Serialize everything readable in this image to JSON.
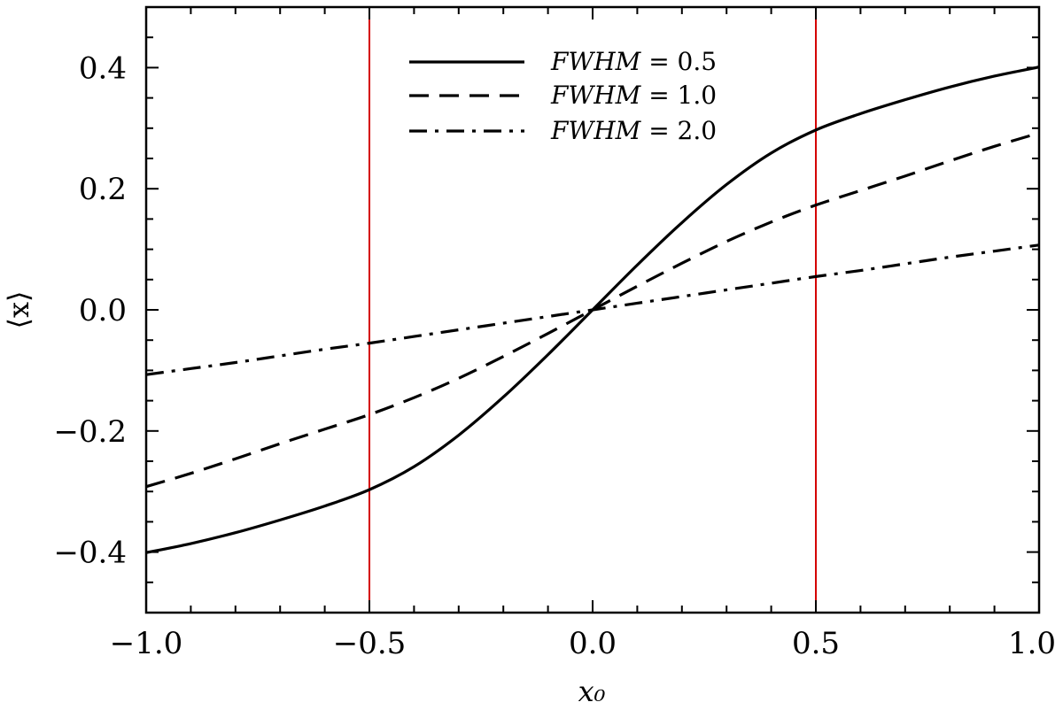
{
  "chart_data": {
    "type": "line",
    "title": "",
    "xlabel": "x₀",
    "ylabel": "⟨x⟩",
    "xlim": [
      -1.0,
      1.0
    ],
    "ylim": [
      -0.5,
      0.5
    ],
    "x_ticks": [
      -1.0,
      -0.5,
      0.0,
      0.5,
      1.0
    ],
    "x_tick_labels": [
      "−1.0",
      "−0.5",
      "0.0",
      "0.5",
      "1.0"
    ],
    "y_ticks": [
      -0.4,
      -0.2,
      0.0,
      0.2,
      0.4
    ],
    "y_tick_labels": [
      "−0.4",
      "−0.2",
      "0.0",
      "0.2",
      "0.4"
    ],
    "grid": false,
    "legend_position": "top-center",
    "vertical_lines": [
      {
        "x": -0.5,
        "color": "#d40000"
      },
      {
        "x": 0.5,
        "color": "#d40000"
      }
    ],
    "x": [
      -1.0,
      -0.9,
      -0.8,
      -0.7,
      -0.6,
      -0.5,
      -0.4,
      -0.3,
      -0.2,
      -0.1,
      0.0,
      0.1,
      0.2,
      0.3,
      0.4,
      0.5,
      0.6,
      0.7,
      0.8,
      0.9,
      1.0
    ],
    "series": [
      {
        "name": "FWHM = 0.5",
        "style": "solid",
        "color": "#000000",
        "values": [
          -0.401,
          -0.386,
          -0.368,
          -0.347,
          -0.324,
          -0.297,
          -0.259,
          -0.207,
          -0.144,
          -0.074,
          0.0,
          0.074,
          0.144,
          0.207,
          0.259,
          0.297,
          0.324,
          0.347,
          0.368,
          0.386,
          0.401
        ]
      },
      {
        "name": "FWHM = 1.0",
        "style": "dashed",
        "color": "#000000",
        "values": [
          -0.292,
          -0.27,
          -0.246,
          -0.221,
          -0.197,
          -0.173,
          -0.145,
          -0.113,
          -0.077,
          -0.039,
          0.0,
          0.039,
          0.077,
          0.113,
          0.145,
          0.173,
          0.197,
          0.221,
          0.246,
          0.27,
          0.292
        ]
      },
      {
        "name": "FWHM = 2.0",
        "style": "dashdot",
        "color": "#000000",
        "values": [
          -0.107,
          -0.097,
          -0.087,
          -0.076,
          -0.065,
          -0.055,
          -0.044,
          -0.033,
          -0.022,
          -0.011,
          0.0,
          0.011,
          0.022,
          0.033,
          0.044,
          0.055,
          0.065,
          0.076,
          0.087,
          0.097,
          0.107
        ]
      }
    ]
  },
  "legend": {
    "items": [
      {
        "label_var": "FWHM",
        "label_rest": " = 0.5"
      },
      {
        "label_var": "FWHM",
        "label_rest": " = 1.0"
      },
      {
        "label_var": "FWHM",
        "label_rest": " = 2.0"
      }
    ]
  }
}
